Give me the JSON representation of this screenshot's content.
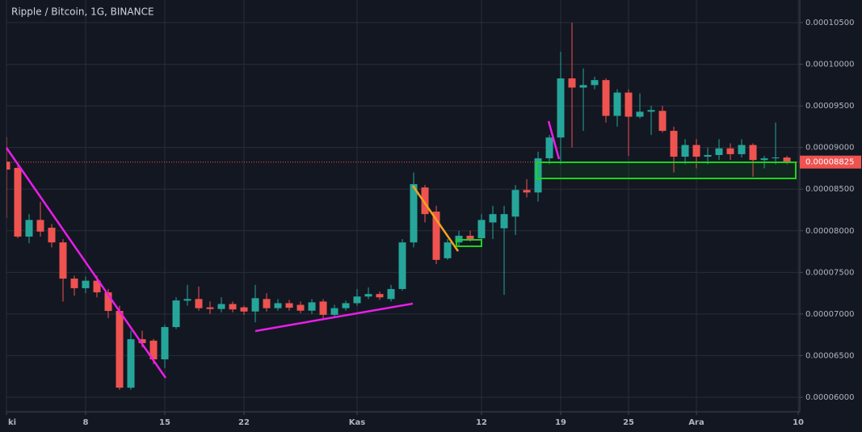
{
  "chart_data": {
    "type": "candlestick",
    "title": "Ripple / Bitcoin, 1G, BINANCE",
    "x": [
      0,
      1,
      2,
      3,
      4,
      5,
      6,
      7,
      8,
      9,
      10,
      11,
      12,
      13,
      14,
      15,
      16,
      17,
      18,
      19,
      20,
      21,
      22,
      23,
      24,
      25,
      26,
      27,
      28,
      29,
      30,
      31,
      32,
      33,
      34,
      35,
      36,
      37,
      38,
      39,
      40,
      41,
      42,
      43,
      44,
      45,
      46,
      47,
      48,
      49,
      50,
      51,
      52,
      53,
      54,
      55,
      56,
      57,
      58,
      59,
      60,
      61,
      62,
      63,
      64,
      65,
      66,
      67,
      68,
      69
    ],
    "open": [
      8.83e-05,
      8.755e-05,
      7.93e-05,
      8.13e-05,
      8.036e-05,
      7.86e-05,
      7.425e-05,
      7.31e-05,
      7.4e-05,
      7.26e-05,
      7.037e-05,
      6.115e-05,
      6.697e-05,
      6.68e-05,
      6.455e-05,
      6.843e-05,
      7.16e-05,
      7.18e-05,
      7.08e-05,
      7.06e-05,
      7.12e-05,
      7.08e-05,
      7.03e-05,
      7.18e-05,
      7.07e-05,
      7.13e-05,
      7.11e-05,
      7.04e-05,
      7.15e-05,
      6.99e-05,
      7.07e-05,
      7.13e-05,
      7.21e-05,
      7.24e-05,
      7.18e-05,
      7.3e-05,
      7.86e-05,
      8.52e-05,
      8.23e-05,
      7.67e-05,
      7.86e-05,
      7.94e-05,
      7.91e-05,
      8.1e-05,
      8.03e-05,
      8.17e-05,
      8.49e-05,
      8.46e-05,
      8.87e-05,
      9.12e-05,
      9.83e-05,
      9.72e-05,
      9.75e-05,
      9.81e-05,
      9.38e-05,
      9.66e-05,
      9.37e-05,
      9.43e-05,
      9.44e-05,
      9.2e-05,
      8.89e-05,
      9.03e-05,
      8.89e-05,
      8.91e-05,
      8.99e-05,
      8.92e-05,
      9.03e-05,
      8.85e-05,
      8.87e-05,
      8.88e-05
    ],
    "high": [
      9.123e-05,
      8.785e-05,
      8.2e-05,
      8.347e-05,
      8.08e-05,
      7.9e-05,
      7.46e-05,
      7.45e-05,
      7.46e-05,
      7.3e-05,
      7.1e-05,
      6.8e-05,
      6.8e-05,
      6.7e-05,
      6.87e-05,
      7.2e-05,
      7.35e-05,
      7.33e-05,
      7.15e-05,
      7.2e-05,
      7.15e-05,
      7.1e-05,
      7.35e-05,
      7.25e-05,
      7.18e-05,
      7.17e-05,
      7.15e-05,
      7.18e-05,
      7.18e-05,
      7.11e-05,
      7.16e-05,
      7.3e-05,
      7.32e-05,
      7.27e-05,
      7.35e-05,
      7.9e-05,
      8.7e-05,
      8.55e-05,
      8.3e-05,
      7.9e-05,
      8e-05,
      8e-05,
      8.2e-05,
      8.3e-05,
      8.3e-05,
      8.55e-05,
      8.62e-05,
      8.95e-05,
      9.15e-05,
      0.0001015,
      0.000105,
      9.95e-05,
      9.85e-05,
      9.83e-05,
      9.7e-05,
      9.7e-05,
      9.65e-05,
      9.5e-05,
      9.5e-05,
      9.25e-05,
      9.1e-05,
      9.1e-05,
      9e-05,
      9.1e-05,
      9.05e-05,
      9.1e-05,
      9.05e-05,
      8.9e-05,
      9.3e-05,
      8.9e-05
    ],
    "low": [
      8.153e-05,
      7.91e-05,
      7.85e-05,
      7.93e-05,
      7.8e-05,
      7.15e-05,
      7.22e-05,
      7.25e-05,
      7.2e-05,
      6.95e-05,
      6.09e-05,
      6.09e-05,
      6.6e-05,
      6.4e-05,
      6.35e-05,
      6.82e-05,
      7.1e-05,
      7.04e-05,
      7e-05,
      7.02e-05,
      7.02e-05,
      6.99e-05,
      6.9e-05,
      7.03e-05,
      7.04e-05,
      7.04e-05,
      7.01e-05,
      7e-05,
      6.95e-05,
      6.95e-05,
      7.04e-05,
      7.1e-05,
      7.18e-05,
      7.17e-05,
      7.15e-05,
      7.28e-05,
      7.8e-05,
      8.1e-05,
      7.6e-05,
      7.65e-05,
      7.82e-05,
      7.87e-05,
      7.85e-05,
      7.9e-05,
      7.23e-05,
      7.95e-05,
      8.4e-05,
      8.35e-05,
      8.8e-05,
      8.8e-05,
      9e-05,
      9.2e-05,
      9.7e-05,
      9.3e-05,
      9.25e-05,
      8.9e-05,
      9.35e-05,
      9.15e-05,
      9.18e-05,
      8.7e-05,
      8.8e-05,
      8.75e-05,
      8.8e-05,
      8.85e-05,
      8.85e-05,
      8.88e-05,
      8.65e-05,
      8.75e-05,
      8.8e-05,
      8.8e-05
    ],
    "close": [
      8.735e-05,
      7.93e-05,
      8.13e-05,
      7.99e-05,
      7.86e-05,
      7.425e-05,
      7.31e-05,
      7.4e-05,
      7.26e-05,
      7.037e-05,
      6.115e-05,
      6.697e-05,
      6.65e-05,
      6.455e-05,
      6.843e-05,
      7.163e-05,
      7.18e-05,
      7.07e-05,
      7.06e-05,
      7.12e-05,
      7.055e-05,
      7.03e-05,
      7.19e-05,
      7.07e-05,
      7.13e-05,
      7.075e-05,
      7.04e-05,
      7.14e-05,
      6.99e-05,
      7.07e-05,
      7.13e-05,
      7.21e-05,
      7.24e-05,
      7.2e-05,
      7.3e-05,
      7.86e-05,
      8.56e-05,
      8.2e-05,
      7.65e-05,
      7.86e-05,
      7.94e-05,
      7.9e-05,
      8.13e-05,
      8.2e-05,
      8.2e-05,
      8.49e-05,
      8.46e-05,
      8.87e-05,
      9.12e-05,
      9.83e-05,
      9.72e-05,
      9.75e-05,
      9.81e-05,
      9.38e-05,
      9.66e-05,
      9.37e-05,
      9.43e-05,
      9.45e-05,
      9.2e-05,
      8.89e-05,
      9.03e-05,
      8.89e-05,
      8.91e-05,
      8.99e-05,
      8.92e-05,
      9.03e-05,
      8.85e-05,
      8.87e-05,
      8.88e-05,
      8.825e-05
    ],
    "up_color": "#26a69a",
    "down_color": "#ef5350",
    "xlim": [
      0,
      70.14
    ],
    "xticks": [
      {
        "value": 0,
        "label": "ki"
      },
      {
        "value": 7,
        "label": "8"
      },
      {
        "value": 14,
        "label": "15"
      },
      {
        "value": 21,
        "label": "22"
      },
      {
        "value": 31,
        "label": "Kas"
      },
      {
        "value": 42,
        "label": "12"
      },
      {
        "value": 49,
        "label": "19"
      },
      {
        "value": 55,
        "label": "25"
      },
      {
        "value": 61,
        "label": "Ara"
      },
      {
        "value": 70,
        "label": "10"
      }
    ],
    "ylim": [
      5.825e-05,
      0.00010772
    ],
    "yticks": [
      {
        "value": 6e-05,
        "label": "0.00006000"
      },
      {
        "value": 6.5e-05,
        "label": "0.00006500"
      },
      {
        "value": 7e-05,
        "label": "0.00007000"
      },
      {
        "value": 7.5e-05,
        "label": "0.00007500"
      },
      {
        "value": 8e-05,
        "label": "0.00008000"
      },
      {
        "value": 8.5e-05,
        "label": "0.00008500"
      },
      {
        "value": 9e-05,
        "label": "0.00009000"
      },
      {
        "value": 9.5e-05,
        "label": "0.00009500"
      },
      {
        "value": 0.0001,
        "label": "0.00010000"
      },
      {
        "value": 0.000105,
        "label": "0.00010500"
      }
    ],
    "last_price": {
      "value": 8.825e-05,
      "label": "0.00008825"
    },
    "grid": true
  }
}
